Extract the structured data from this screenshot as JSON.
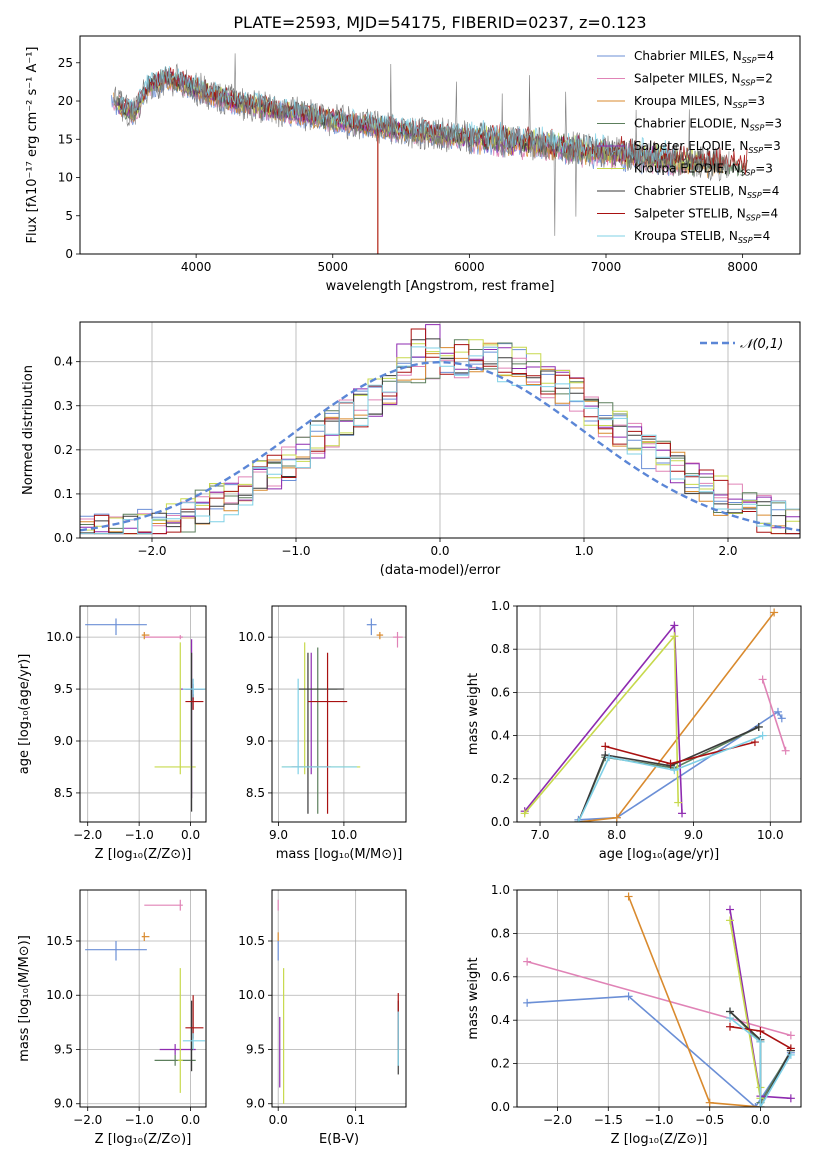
{
  "figure_title": "PLATE=2593, MJD=54175, FIBERID=0237, z=0.123",
  "models": [
    {
      "name": "Chabrier MILES",
      "nssp": "4",
      "color": "#6b8fd6"
    },
    {
      "name": "Salpeter MILES",
      "nssp": "2",
      "color": "#e083b6"
    },
    {
      "name": "Kroupa MILES",
      "nssp": "3",
      "color": "#d98a2e"
    },
    {
      "name": "Chabrier ELODIE",
      "nssp": "3",
      "color": "#5c7f5c"
    },
    {
      "name": "Salpeter ELODIE",
      "nssp": "3",
      "color": "#8e2bb0"
    },
    {
      "name": "Kroupa ELODIE",
      "nssp": "3",
      "color": "#c7d94d"
    },
    {
      "name": "Chabrier STELIB",
      "nssp": "4",
      "color": "#3a3a3a"
    },
    {
      "name": "Salpeter STELIB",
      "nssp": "4",
      "color": "#a81111"
    },
    {
      "name": "Kroupa STELIB",
      "nssp": "4",
      "color": "#7fd0e6"
    }
  ],
  "chart_data": [
    {
      "id": "spectrum",
      "type": "line",
      "xlabel": "wavelength [Angstrom, rest frame]",
      "ylabel": "Flux [fλ10⁻¹⁷ erg cm⁻² s⁻¹ A⁻¹]",
      "xlim": [
        3150,
        8420
      ],
      "ylim": [
        0,
        28.5
      ],
      "xticks": [
        4000,
        5000,
        6000,
        7000,
        8000
      ],
      "yticks": [
        0,
        5,
        10,
        15,
        20,
        25
      ],
      "continuum": {
        "x": [
          3380,
          3450,
          3550,
          3650,
          3800,
          3950,
          4100,
          4300,
          4600,
          5000,
          5500,
          6000,
          6500,
          7000,
          7500,
          7900
        ],
        "y": [
          20.5,
          19.2,
          18.5,
          22.0,
          23.0,
          22.0,
          21.0,
          19.8,
          18.8,
          17.5,
          16.2,
          15.2,
          14.4,
          13.3,
          12.3,
          11.5
        ]
      }
    },
    {
      "id": "residuals",
      "type": "step",
      "xlabel": "(data-model)/error",
      "ylabel": "Normed distribution",
      "xlim": [
        -2.5,
        2.5
      ],
      "ylim": [
        0,
        0.49
      ],
      "xticks": [
        -2,
        -1,
        0,
        1,
        2
      ],
      "yticks": [
        0.0,
        0.1,
        0.2,
        0.3,
        0.4
      ],
      "gaussian_label": "𝒩(0,1)"
    },
    {
      "id": "age-vs-Z",
      "type": "errorbar",
      "xlabel": "Z [log₁₀(Z/Z⊙)]",
      "ylabel": "age  [log₁₀(age/yr)]",
      "xlim": [
        -2.15,
        0.3
      ],
      "ylim": [
        8.22,
        10.3
      ],
      "xticks": [
        -2,
        -1,
        0
      ],
      "yticks": [
        8.5,
        9.0,
        9.5,
        10.0
      ],
      "points": [
        {
          "m": 0,
          "x": -1.45,
          "xe": [
            -2.05,
            -0.85
          ],
          "y": 10.12,
          "ye": [
            10.02,
            10.18
          ]
        },
        {
          "m": 1,
          "x": -0.2,
          "xe": [
            -0.9,
            -0.15
          ],
          "y": 10.0,
          "ye": [
            9.98,
            10.02
          ]
        },
        {
          "m": 2,
          "x": -0.9,
          "xe": [
            -0.95,
            -0.8
          ],
          "y": 10.02,
          "ye": [
            9.98,
            10.05
          ]
        },
        {
          "m": 0,
          "x": 0.05,
          "xe": [
            -0.2,
            0.28
          ],
          "y": 9.5,
          "ye": [
            9.4,
            9.55
          ]
        },
        {
          "m": 4,
          "x": 0.02,
          "xe": [
            -0.2,
            0.25
          ],
          "y": 9.5,
          "ye": [
            8.45,
            9.98
          ]
        },
        {
          "m": 5,
          "x": -0.2,
          "xe": [
            -0.7,
            0.1
          ],
          "y": 8.75,
          "ye": [
            8.68,
            9.95
          ]
        },
        {
          "m": 6,
          "x": 0.02,
          "xe": [
            -0.1,
            0.28
          ],
          "y": 9.5,
          "ye": [
            8.32,
            9.85
          ]
        },
        {
          "m": 7,
          "x": 0.05,
          "xe": [
            -0.1,
            0.25
          ],
          "y": 9.38,
          "ye": [
            9.3,
            9.45
          ]
        },
        {
          "m": 8,
          "x": 0.05,
          "xe": [
            -0.15,
            0.28
          ],
          "y": 9.5,
          "ye": [
            9.42,
            9.6
          ]
        }
      ]
    },
    {
      "id": "age-vs-mass",
      "type": "errorbar",
      "xlabel": "mass [log₁₀(M/M⊙)]",
      "ylabel": "",
      "xlim": [
        8.9,
        10.95
      ],
      "ylim": [
        8.22,
        10.3
      ],
      "xticks": [
        9,
        10
      ],
      "yticks": [
        8.5,
        9.0,
        9.5,
        10.0
      ],
      "points": [
        {
          "m": 0,
          "x": 10.42,
          "xe": [
            10.35,
            10.5
          ],
          "y": 10.12,
          "ye": [
            10.02,
            10.18
          ]
        },
        {
          "m": 1,
          "x": 10.82,
          "xe": [
            10.75,
            10.9
          ],
          "y": 10.0,
          "ye": [
            9.9,
            10.05
          ]
        },
        {
          "m": 2,
          "x": 10.55,
          "xe": [
            10.5,
            10.6
          ],
          "y": 10.02,
          "ye": [
            9.98,
            10.05
          ]
        },
        {
          "m": 3,
          "x": 9.6,
          "xe": [
            9.3,
            9.9
          ],
          "y": 9.5,
          "ye": [
            8.3,
            9.9
          ]
        },
        {
          "m": 4,
          "x": 9.5,
          "xe": [
            9.2,
            9.8
          ],
          "y": 8.75,
          "ye": [
            8.68,
            9.85
          ]
        },
        {
          "m": 5,
          "x": 9.4,
          "xe": [
            9.05,
            10.25
          ],
          "y": 8.75,
          "ye": [
            8.68,
            9.95
          ]
        },
        {
          "m": 6,
          "x": 9.45,
          "xe": [
            9.3,
            10.0
          ],
          "y": 9.5,
          "ye": [
            8.3,
            9.85
          ]
        },
        {
          "m": 7,
          "x": 9.75,
          "xe": [
            9.45,
            10.05
          ],
          "y": 9.38,
          "ye": [
            8.3,
            9.85
          ]
        },
        {
          "m": 8,
          "x": 9.3,
          "xe": [
            9.05,
            10.2
          ],
          "y": 8.75,
          "ye": [
            8.68,
            9.6
          ]
        }
      ]
    },
    {
      "id": "weight-vs-age",
      "type": "line",
      "xlabel": "age  [log₁₀(age/yr)]",
      "ylabel": "mass weight",
      "xlim": [
        6.7,
        10.4
      ],
      "ylim": [
        0,
        1.0
      ],
      "xticks": [
        7,
        8,
        9,
        10
      ],
      "yticks": [
        0.0,
        0.2,
        0.4,
        0.6,
        0.8,
        1.0
      ],
      "series": [
        {
          "m": 0,
          "x": [
            7.5,
            8.0,
            10.1,
            10.15
          ],
          "y": [
            0.01,
            0.02,
            0.51,
            0.48
          ]
        },
        {
          "m": 1,
          "x": [
            9.9,
            10.2
          ],
          "y": [
            0.66,
            0.33
          ]
        },
        {
          "m": 2,
          "x": [
            7.5,
            8.0,
            10.05
          ],
          "y": [
            0.0,
            0.02,
            0.97
          ]
        },
        {
          "m": 3,
          "x": [
            7.5,
            7.85,
            8.75,
            9.85
          ],
          "y": [
            0.0,
            0.3,
            0.25,
            0.44
          ]
        },
        {
          "m": 4,
          "x": [
            6.8,
            8.75,
            8.85
          ],
          "y": [
            0.05,
            0.91,
            0.04
          ]
        },
        {
          "m": 5,
          "x": [
            6.8,
            8.75,
            8.8
          ],
          "y": [
            0.04,
            0.86,
            0.09
          ]
        },
        {
          "m": 6,
          "x": [
            7.5,
            7.85,
            8.7,
            9.85
          ],
          "y": [
            0.0,
            0.31,
            0.26,
            0.44
          ]
        },
        {
          "m": 7,
          "x": [
            7.85,
            8.7,
            9.8
          ],
          "y": [
            0.35,
            0.27,
            0.37
          ]
        },
        {
          "m": 8,
          "x": [
            7.5,
            7.9,
            8.75,
            9.9
          ],
          "y": [
            0.0,
            0.3,
            0.24,
            0.4
          ]
        }
      ]
    },
    {
      "id": "mass-vs-Z",
      "type": "errorbar",
      "xlabel": "Z [log₁₀(Z/Z⊙)]",
      "ylabel": "mass [log₁₀(M/M⊙)]",
      "xlim": [
        -2.15,
        0.3
      ],
      "ylim": [
        8.97,
        10.97
      ],
      "xticks": [
        -2,
        -1,
        0
      ],
      "yticks": [
        9.0,
        9.5,
        10.0,
        10.5
      ],
      "points": [
        {
          "m": 0,
          "x": -1.45,
          "xe": [
            -2.05,
            -0.85
          ],
          "y": 10.42,
          "ye": [
            10.32,
            10.5
          ]
        },
        {
          "m": 1,
          "x": -0.2,
          "xe": [
            -0.9,
            -0.15
          ],
          "y": 10.83,
          "ye": [
            10.78,
            10.88
          ]
        },
        {
          "m": 2,
          "x": -0.9,
          "xe": [
            -0.95,
            -0.8
          ],
          "y": 10.54,
          "ye": [
            10.5,
            10.58
          ]
        },
        {
          "m": 3,
          "x": -0.3,
          "xe": [
            -0.7,
            0.1
          ],
          "y": 9.4,
          "ye": [
            9.35,
            9.45
          ]
        },
        {
          "m": 4,
          "x": -0.3,
          "xe": [
            -0.6,
            0.1
          ],
          "y": 9.5,
          "ye": [
            9.45,
            9.55
          ]
        },
        {
          "m": 5,
          "x": -0.2,
          "xe": [
            -0.25,
            -0.15
          ],
          "y": 9.4,
          "ye": [
            9.1,
            10.25
          ]
        },
        {
          "m": 6,
          "x": 0.02,
          "xe": [
            0.0,
            0.05
          ],
          "y": 9.5,
          "ye": [
            9.3,
            9.95
          ]
        },
        {
          "m": 7,
          "x": 0.05,
          "xe": [
            -0.1,
            0.25
          ],
          "y": 9.7,
          "ye": [
            9.6,
            10.0
          ]
        },
        {
          "m": 8,
          "x": 0.05,
          "xe": [
            -0.15,
            0.28
          ],
          "y": 9.58,
          "ye": [
            9.5,
            9.65
          ]
        }
      ]
    },
    {
      "id": "mass-vs-EBV",
      "type": "errorbar",
      "xlabel": "E(B-V)",
      "ylabel": "",
      "xlim": [
        -0.008,
        0.165
      ],
      "ylim": [
        8.97,
        10.97
      ],
      "xticks": [
        0.0,
        0.1
      ],
      "yticks": [
        9.0,
        9.5,
        10.0,
        10.5
      ],
      "points": [
        {
          "m": 0,
          "x": 0.0,
          "xe": [
            0.0,
            0.0
          ],
          "y": 10.42,
          "ye": [
            10.32,
            10.5
          ]
        },
        {
          "m": 1,
          "x": 0.0,
          "xe": [
            0.0,
            0.0
          ],
          "y": 10.83,
          "ye": [
            10.78,
            10.88
          ]
        },
        {
          "m": 2,
          "x": 0.0,
          "xe": [
            0.0,
            0.0
          ],
          "y": 10.54,
          "ye": [
            10.5,
            10.58
          ]
        },
        {
          "m": 4,
          "x": 0.002,
          "xe": [
            0.002,
            0.002
          ],
          "y": 9.5,
          "ye": [
            9.15,
            9.8
          ]
        },
        {
          "m": 5,
          "x": 0.007,
          "xe": [
            0.007,
            0.007
          ],
          "y": 9.5,
          "ye": [
            9.0,
            10.25
          ]
        },
        {
          "m": 6,
          "x": 0.155,
          "xe": [
            0.155,
            0.155
          ],
          "y": 9.6,
          "ye": [
            9.27,
            9.95
          ]
        },
        {
          "m": 7,
          "x": 0.155,
          "xe": [
            0.155,
            0.155
          ],
          "y": 9.7,
          "ye": [
            9.5,
            10.02
          ]
        },
        {
          "m": 8,
          "x": 0.155,
          "xe": [
            0.155,
            0.155
          ],
          "y": 9.55,
          "ye": [
            9.35,
            9.85
          ]
        }
      ]
    },
    {
      "id": "weight-vs-Z",
      "type": "line",
      "xlabel": "Z [log₁₀(Z/Z⊙)]",
      "ylabel": "mass weight",
      "xlim": [
        -2.4,
        0.4
      ],
      "ylim": [
        0,
        1.0
      ],
      "xticks": [
        -2.0,
        -1.5,
        -1.0,
        -0.5,
        0.0
      ],
      "yticks": [
        0.0,
        0.2,
        0.4,
        0.6,
        0.8,
        1.0
      ],
      "series": [
        {
          "m": 0,
          "x": [
            -2.3,
            -1.3,
            -0.05,
            0.3
          ],
          "y": [
            0.48,
            0.51,
            0.0,
            0.25
          ]
        },
        {
          "m": 1,
          "x": [
            -2.3,
            0.3
          ],
          "y": [
            0.67,
            0.33
          ]
        },
        {
          "m": 2,
          "x": [
            -1.3,
            -0.5,
            0.0
          ],
          "y": [
            0.97,
            0.02,
            0.0
          ]
        },
        {
          "m": 3,
          "x": [
            -0.3,
            0.0,
            0.0,
            0.3
          ],
          "y": [
            0.44,
            0.3,
            0.02,
            0.26
          ]
        },
        {
          "m": 4,
          "x": [
            -0.3,
            0.0,
            0.3
          ],
          "y": [
            0.91,
            0.05,
            0.04
          ]
        },
        {
          "m": 5,
          "x": [
            -0.3,
            0.0,
            0.0
          ],
          "y": [
            0.86,
            0.04,
            0.09
          ]
        },
        {
          "m": 6,
          "x": [
            -0.3,
            0.0,
            0.0,
            0.3
          ],
          "y": [
            0.44,
            0.31,
            0.0,
            0.26
          ]
        },
        {
          "m": 7,
          "x": [
            -0.3,
            0.0,
            0.3
          ],
          "y": [
            0.37,
            0.35,
            0.27
          ]
        },
        {
          "m": 8,
          "x": [
            -0.3,
            0.0,
            0.0,
            0.3
          ],
          "y": [
            0.41,
            0.3,
            0.0,
            0.24
          ]
        }
      ]
    }
  ]
}
